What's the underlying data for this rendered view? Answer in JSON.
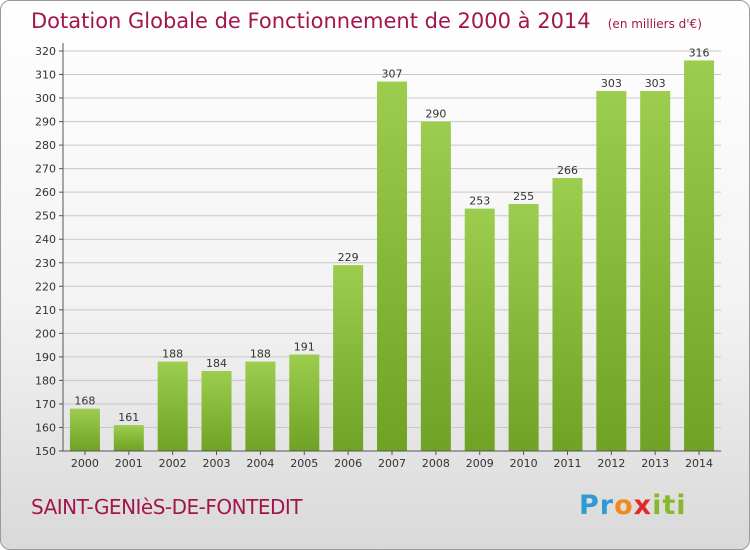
{
  "header": {
    "title": "Dotation Globale de Fonctionnement de 2000 à 2014",
    "unit": "(en milliers d'€)"
  },
  "footer": {
    "commune": "SAINT-GENIèS-DE-FONTEDIT",
    "logo_parts": [
      "Pr",
      "o",
      "x",
      "iti"
    ]
  },
  "colors": {
    "bar_light": "#9ccd4e",
    "bar_dark": "#6fa225",
    "text": "#a2164c",
    "grid": "#c8c8c8"
  },
  "chart_data": {
    "type": "bar",
    "title": "Dotation Globale de Fonctionnement de 2000 à 2014",
    "xlabel": "",
    "ylabel": "",
    "categories": [
      "2000",
      "2001",
      "2002",
      "2003",
      "2004",
      "2005",
      "2006",
      "2007",
      "2008",
      "2009",
      "2010",
      "2011",
      "2012",
      "2013",
      "2014"
    ],
    "values": [
      168,
      161,
      188,
      184,
      188,
      191,
      229,
      307,
      290,
      253,
      255,
      266,
      303,
      303,
      316
    ],
    "ylim": [
      150,
      320
    ],
    "yticks": [
      150,
      160,
      170,
      180,
      190,
      200,
      210,
      220,
      230,
      240,
      250,
      260,
      270,
      280,
      290,
      300,
      310,
      320
    ],
    "grid": true
  }
}
